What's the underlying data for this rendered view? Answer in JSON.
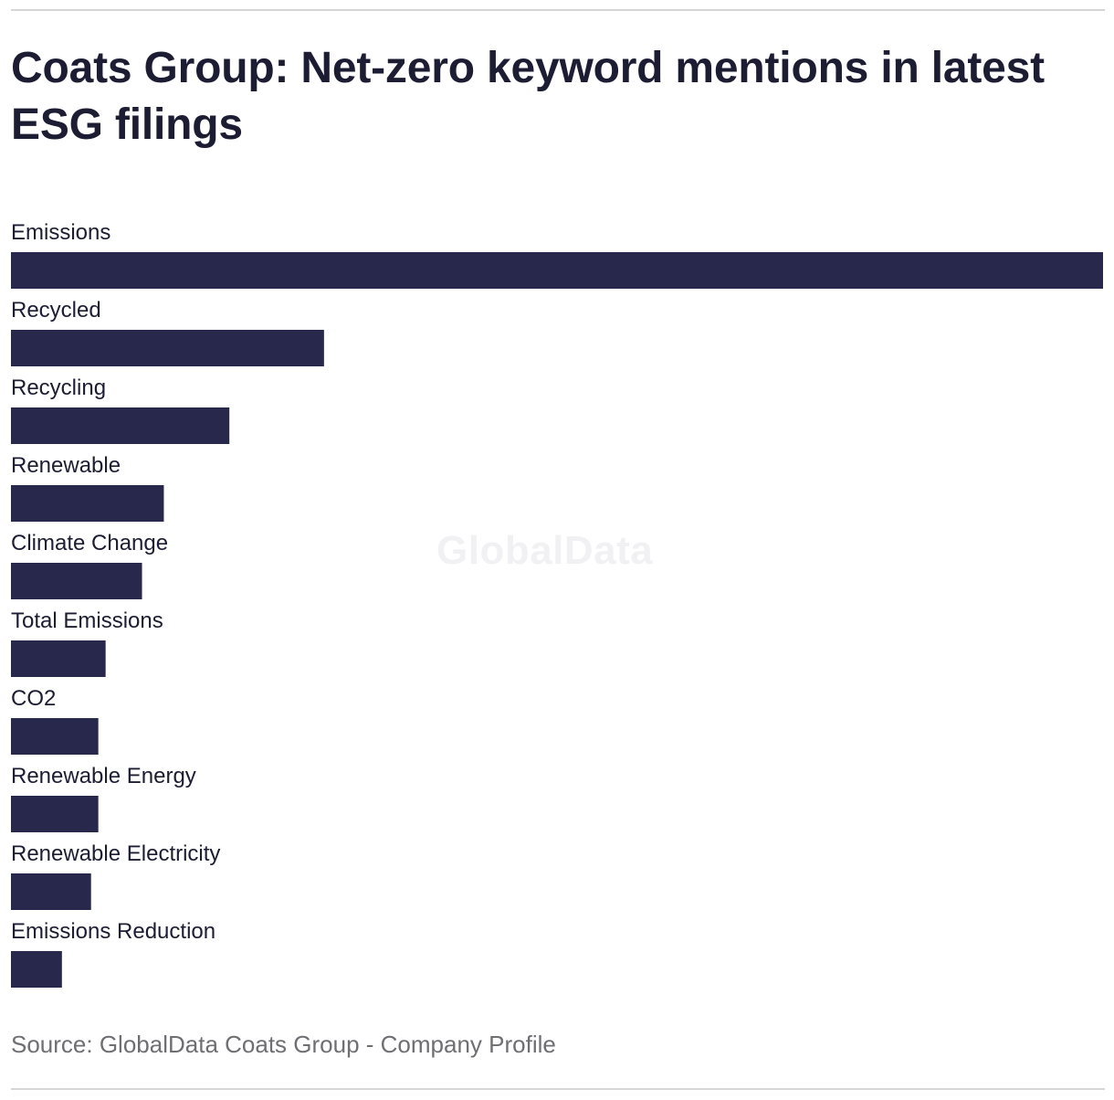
{
  "chart_data": {
    "type": "bar",
    "orientation": "horizontal",
    "title": "Coats Group: Net-zero keyword mentions in latest ESG filings",
    "categories": [
      "Emissions",
      "Recycled",
      "Recycling",
      "Renewable",
      "Climate Change",
      "Total Emissions",
      "CO2",
      "Renewable Energy",
      "Renewable Electricity",
      "Emissions Reduction"
    ],
    "values": [
      150,
      43,
      30,
      21,
      18,
      13,
      12,
      12,
      11,
      7
    ],
    "xlim": [
      0,
      150
    ],
    "grid": false,
    "legend": "none",
    "bar_color": "#27284b"
  },
  "watermark": "GlobalData",
  "source": "Source: GlobalData Coats Group - Company Profile"
}
